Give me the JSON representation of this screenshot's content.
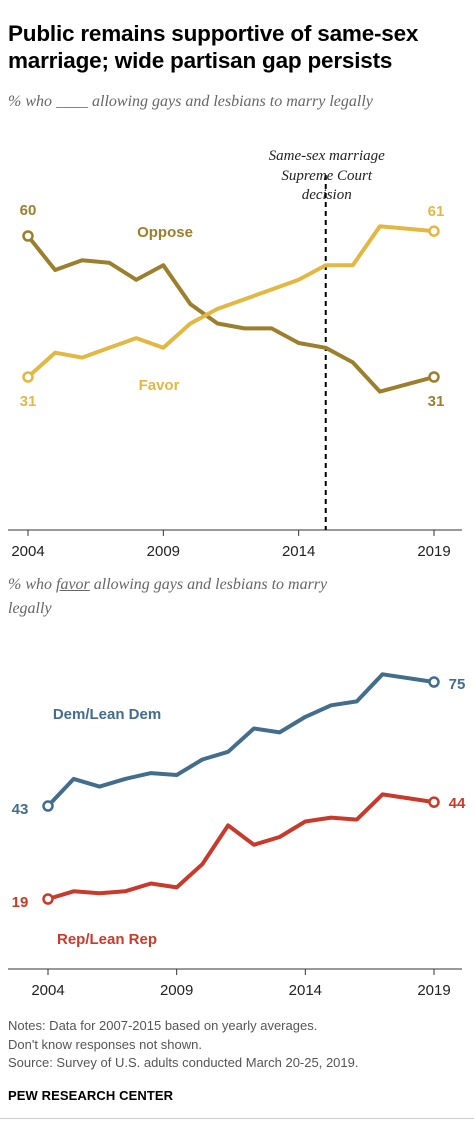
{
  "title": "Public remains supportive of same-sex marriage; wide partisan gap persists",
  "chart1": {
    "subtitle": "% who ____ allowing gays and lesbians to marry legally",
    "annotation": [
      "Same-sex marriage",
      "Supreme Court",
      "decision"
    ]
  },
  "chart2": {
    "subtitle_pre": "% who ",
    "subtitle_em": "favor",
    "subtitle_post": " allowing gays and lesbians to marry legally"
  },
  "notes": [
    "Notes: Data for 2007-2015 based on yearly averages.",
    "Don't know responses not shown.",
    "Source: Survey of U.S. adults conducted March 20-25, 2019."
  ],
  "credit": "PEW RESEARCH CENTER",
  "colors": {
    "oppose": "#9c7f2c",
    "favor": "#e2b843",
    "dem": "#436d8c",
    "rep": "#c83a2b",
    "axis": "#333333",
    "annotation_line": "#000000"
  },
  "chart_data": [
    {
      "type": "line",
      "x": [
        2004,
        2005,
        2006,
        2007,
        2008,
        2009,
        2010,
        2011,
        2012,
        2013,
        2014,
        2015,
        2016,
        2017,
        2019
      ],
      "series": [
        {
          "name": "Oppose",
          "values": [
            60,
            53,
            55,
            54.5,
            51,
            54,
            46,
            42,
            41,
            41,
            38,
            37,
            34,
            28,
            31
          ],
          "start_label": "60",
          "end_label": "31",
          "color": "#9c7f2c"
        },
        {
          "name": "Favor",
          "values": [
            31,
            36,
            35,
            37,
            39,
            37,
            42,
            45,
            47,
            49,
            51,
            54,
            54,
            62,
            61
          ],
          "start_label": "31",
          "end_label": "61",
          "color": "#e2b843"
        }
      ],
      "xticks": [
        "2004",
        "2009",
        "2014",
        "2019"
      ],
      "annotation": {
        "x": 2015,
        "text": "Same-sex marriage Supreme Court decision"
      },
      "grid": false
    },
    {
      "type": "line",
      "x": [
        2004,
        2005,
        2006,
        2007,
        2008,
        2009,
        2010,
        2011,
        2012,
        2013,
        2014,
        2015,
        2016,
        2017,
        2019
      ],
      "series": [
        {
          "name": "Dem/Lean Dem",
          "values": [
            43,
            50,
            48,
            50,
            51.5,
            51,
            55,
            57,
            63,
            62,
            66,
            69,
            70,
            77,
            75
          ],
          "start_label": "43",
          "end_label": "75",
          "color": "#436d8c"
        },
        {
          "name": "Rep/Lean Rep",
          "values": [
            19,
            21,
            20.5,
            21,
            23,
            22,
            28,
            38,
            33,
            35,
            39,
            40,
            39.5,
            46,
            44
          ],
          "start_label": "19",
          "end_label": "44",
          "color": "#c83a2b"
        }
      ],
      "xticks": [
        "2004",
        "2009",
        "2014",
        "2019"
      ],
      "grid": false
    }
  ]
}
